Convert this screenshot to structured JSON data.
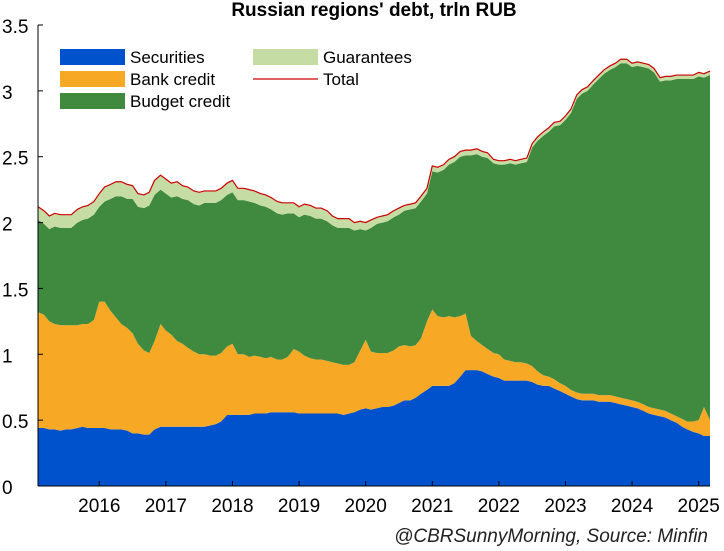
{
  "title": "Russian regions' debt, trln RUB",
  "credit": "@CBRSunnyMorning, Source: Minfin",
  "chart_data": {
    "type": "area",
    "stacked": true,
    "title": "Russian regions' debt, trln RUB",
    "xlabel": "",
    "ylabel": "",
    "ylim": [
      0,
      3.5
    ],
    "yticks": [
      "0",
      "0.5",
      "1",
      "1.5",
      "2",
      "2.5",
      "3",
      "3.5"
    ],
    "xticks": [
      "2016",
      "2017",
      "2018",
      "2019",
      "2020",
      "2021",
      "2022",
      "2023",
      "2024",
      "2025"
    ],
    "grid": false,
    "legend_position": "top-left",
    "x": [
      2015.08,
      2015.17,
      2015.25,
      2015.33,
      2015.42,
      2015.5,
      2015.58,
      2015.67,
      2015.75,
      2015.83,
      2015.92,
      2016.0,
      2016.08,
      2016.17,
      2016.25,
      2016.33,
      2016.42,
      2016.5,
      2016.58,
      2016.67,
      2016.75,
      2016.83,
      2016.92,
      2017.0,
      2017.08,
      2017.17,
      2017.25,
      2017.33,
      2017.42,
      2017.5,
      2017.58,
      2017.67,
      2017.75,
      2017.83,
      2017.92,
      2018.0,
      2018.08,
      2018.17,
      2018.25,
      2018.33,
      2018.42,
      2018.5,
      2018.58,
      2018.67,
      2018.75,
      2018.83,
      2018.92,
      2019.0,
      2019.08,
      2019.17,
      2019.25,
      2019.33,
      2019.42,
      2019.5,
      2019.58,
      2019.67,
      2019.75,
      2019.83,
      2019.92,
      2020.0,
      2020.08,
      2020.17,
      2020.25,
      2020.33,
      2020.42,
      2020.5,
      2020.58,
      2020.67,
      2020.75,
      2020.83,
      2020.92,
      2021.0,
      2021.08,
      2021.17,
      2021.25,
      2021.33,
      2021.42,
      2021.5,
      2021.58,
      2021.67,
      2021.75,
      2021.83,
      2021.92,
      2022.0,
      2022.08,
      2022.17,
      2022.25,
      2022.33,
      2022.42,
      2022.5,
      2022.58,
      2022.67,
      2022.75,
      2022.83,
      2022.92,
      2023.0,
      2023.08,
      2023.17,
      2023.25,
      2023.33,
      2023.42,
      2023.5,
      2023.58,
      2023.67,
      2023.75,
      2023.83,
      2023.92,
      2024.0,
      2024.08,
      2024.17,
      2024.25,
      2024.33,
      2024.42,
      2024.5,
      2024.58,
      2024.67,
      2024.75,
      2024.83,
      2024.92,
      2025.0,
      2025.08,
      2025.17
    ],
    "series": [
      {
        "name": "Securities",
        "color": "#0052cc",
        "values": [
          0.44,
          0.44,
          0.43,
          0.43,
          0.42,
          0.43,
          0.43,
          0.44,
          0.45,
          0.44,
          0.44,
          0.44,
          0.44,
          0.43,
          0.43,
          0.43,
          0.42,
          0.4,
          0.4,
          0.39,
          0.39,
          0.43,
          0.45,
          0.45,
          0.45,
          0.45,
          0.45,
          0.45,
          0.45,
          0.45,
          0.45,
          0.46,
          0.47,
          0.49,
          0.54,
          0.54,
          0.54,
          0.54,
          0.54,
          0.55,
          0.55,
          0.55,
          0.56,
          0.56,
          0.56,
          0.56,
          0.56,
          0.55,
          0.55,
          0.55,
          0.55,
          0.55,
          0.55,
          0.55,
          0.55,
          0.54,
          0.55,
          0.56,
          0.58,
          0.59,
          0.58,
          0.59,
          0.6,
          0.6,
          0.61,
          0.63,
          0.65,
          0.65,
          0.67,
          0.7,
          0.73,
          0.76,
          0.76,
          0.76,
          0.76,
          0.78,
          0.83,
          0.88,
          0.88,
          0.88,
          0.87,
          0.85,
          0.83,
          0.82,
          0.8,
          0.8,
          0.8,
          0.8,
          0.8,
          0.79,
          0.77,
          0.76,
          0.76,
          0.74,
          0.72,
          0.7,
          0.68,
          0.66,
          0.65,
          0.65,
          0.65,
          0.64,
          0.64,
          0.64,
          0.63,
          0.62,
          0.61,
          0.6,
          0.59,
          0.57,
          0.55,
          0.54,
          0.53,
          0.52,
          0.5,
          0.48,
          0.45,
          0.43,
          0.41,
          0.4,
          0.38,
          0.38
        ]
      },
      {
        "name": "Bank credit",
        "color": "#f7a825",
        "values": [
          0.88,
          0.86,
          0.82,
          0.8,
          0.8,
          0.79,
          0.79,
          0.78,
          0.78,
          0.79,
          0.82,
          0.96,
          0.96,
          0.9,
          0.85,
          0.8,
          0.78,
          0.76,
          0.68,
          0.64,
          0.62,
          0.67,
          0.78,
          0.73,
          0.7,
          0.65,
          0.63,
          0.6,
          0.57,
          0.55,
          0.55,
          0.53,
          0.52,
          0.52,
          0.52,
          0.54,
          0.46,
          0.46,
          0.44,
          0.44,
          0.43,
          0.42,
          0.42,
          0.4,
          0.4,
          0.42,
          0.48,
          0.47,
          0.44,
          0.42,
          0.41,
          0.41,
          0.4,
          0.39,
          0.38,
          0.38,
          0.37,
          0.38,
          0.45,
          0.52,
          0.44,
          0.42,
          0.41,
          0.41,
          0.42,
          0.43,
          0.42,
          0.41,
          0.4,
          0.42,
          0.52,
          0.58,
          0.53,
          0.52,
          0.53,
          0.5,
          0.46,
          0.43,
          0.26,
          0.22,
          0.2,
          0.19,
          0.18,
          0.18,
          0.16,
          0.15,
          0.14,
          0.14,
          0.13,
          0.12,
          0.1,
          0.08,
          0.07,
          0.07,
          0.06,
          0.06,
          0.05,
          0.05,
          0.05,
          0.05,
          0.05,
          0.05,
          0.05,
          0.05,
          0.05,
          0.05,
          0.05,
          0.05,
          0.05,
          0.05,
          0.05,
          0.05,
          0.05,
          0.05,
          0.05,
          0.05,
          0.06,
          0.06,
          0.08,
          0.1,
          0.22,
          0.12
        ]
      },
      {
        "name": "Budget credit",
        "color": "#3f8a3f",
        "values": [
          0.7,
          0.69,
          0.7,
          0.74,
          0.74,
          0.74,
          0.74,
          0.78,
          0.79,
          0.8,
          0.8,
          0.72,
          0.76,
          0.85,
          0.92,
          0.97,
          0.98,
          1.02,
          1.04,
          1.08,
          1.12,
          1.11,
          1.02,
          1.04,
          1.04,
          1.1,
          1.1,
          1.12,
          1.12,
          1.13,
          1.15,
          1.16,
          1.16,
          1.16,
          1.15,
          1.15,
          1.17,
          1.17,
          1.18,
          1.16,
          1.15,
          1.15,
          1.12,
          1.11,
          1.1,
          1.09,
          1.03,
          1.02,
          1.07,
          1.08,
          1.07,
          1.07,
          1.06,
          1.04,
          1.03,
          1.04,
          1.04,
          1.0,
          0.92,
          0.83,
          0.94,
          0.98,
          0.99,
          1.0,
          1.01,
          1.0,
          1.02,
          1.04,
          1.04,
          1.04,
          0.97,
          1.05,
          1.09,
          1.12,
          1.15,
          1.18,
          1.21,
          1.2,
          1.37,
          1.42,
          1.43,
          1.45,
          1.44,
          1.44,
          1.48,
          1.5,
          1.5,
          1.51,
          1.53,
          1.66,
          1.75,
          1.82,
          1.86,
          1.92,
          1.96,
          2.02,
          2.1,
          2.23,
          2.28,
          2.3,
          2.35,
          2.4,
          2.44,
          2.47,
          2.5,
          2.54,
          2.55,
          2.53,
          2.55,
          2.56,
          2.57,
          2.55,
          2.49,
          2.51,
          2.53,
          2.56,
          2.58,
          2.6,
          2.6,
          2.61,
          2.5,
          2.62
        ]
      },
      {
        "name": "Guarantees",
        "color": "#c6dca5",
        "values": [
          0.1,
          0.1,
          0.1,
          0.1,
          0.1,
          0.1,
          0.1,
          0.1,
          0.1,
          0.1,
          0.1,
          0.1,
          0.11,
          0.11,
          0.11,
          0.11,
          0.11,
          0.1,
          0.1,
          0.1,
          0.1,
          0.11,
          0.11,
          0.11,
          0.11,
          0.11,
          0.1,
          0.1,
          0.1,
          0.1,
          0.09,
          0.09,
          0.09,
          0.09,
          0.09,
          0.09,
          0.09,
          0.09,
          0.09,
          0.09,
          0.09,
          0.09,
          0.09,
          0.09,
          0.09,
          0.08,
          0.08,
          0.08,
          0.08,
          0.08,
          0.08,
          0.08,
          0.08,
          0.07,
          0.07,
          0.07,
          0.07,
          0.06,
          0.06,
          0.06,
          0.06,
          0.05,
          0.05,
          0.05,
          0.05,
          0.05,
          0.04,
          0.04,
          0.04,
          0.04,
          0.04,
          0.04,
          0.04,
          0.04,
          0.04,
          0.04,
          0.04,
          0.04,
          0.04,
          0.04,
          0.04,
          0.04,
          0.03,
          0.03,
          0.03,
          0.03,
          0.03,
          0.03,
          0.03,
          0.03,
          0.03,
          0.03,
          0.03,
          0.03,
          0.03,
          0.03,
          0.03,
          0.03,
          0.03,
          0.03,
          0.03,
          0.03,
          0.03,
          0.03,
          0.03,
          0.03,
          0.03,
          0.03,
          0.03,
          0.03,
          0.03,
          0.03,
          0.03,
          0.03,
          0.03,
          0.03,
          0.03,
          0.03,
          0.03,
          0.03,
          0.03,
          0.03
        ]
      }
    ],
    "total": {
      "name": "Total",
      "color": "#cc0000"
    }
  }
}
